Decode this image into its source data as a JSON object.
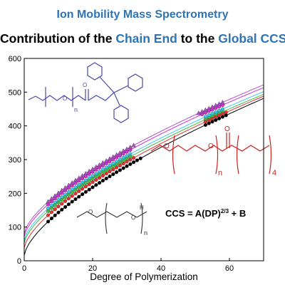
{
  "title": "Ion Mobility Mass Spectrometry",
  "subtitle": {
    "part1": "Contribution of the ",
    "part2": "Chain End",
    "part3": " to the ",
    "part4": "Global CCS"
  },
  "formula": {
    "prefix": "CCS = A(DP)",
    "exponent": "2/3",
    "suffix": " + B"
  },
  "structure_labels": {
    "n": "n",
    "o": "O",
    "h": "H",
    "four": "4"
  },
  "colors": {
    "title": "#2e74b5",
    "purple": "#b24fd1",
    "magenta": "#cc33cc",
    "cyan": "#33ccee",
    "green": "#44bb44",
    "red": "#e03030",
    "black": "#000000",
    "struct_blue": "#4a4aa8",
    "struct_red": "#cc2222",
    "struct_black": "#333333"
  },
  "chart_data": {
    "type": "scatter",
    "xlabel": "Degree of Polymerization",
    "ylabel": "",
    "xlim": [
      0,
      70
    ],
    "ylim": [
      0,
      600
    ],
    "xticks": [
      "0",
      "20",
      "40",
      "60"
    ],
    "yticks": [
      "0",
      "100",
      "200",
      "300",
      "400",
      "500",
      "600"
    ],
    "grid": false,
    "fit": "CCS = A(DP)^(2/3) + B",
    "series": [
      {
        "color": "#b24fd1",
        "marker": "triangle",
        "A": 26.0,
        "B": 80,
        "x_low": [
          7,
          32
        ],
        "x_high": [
          51,
          58
        ]
      },
      {
        "color": "#cc33cc",
        "marker": "circle",
        "A": 26.0,
        "B": 72,
        "x_low": [
          7,
          31
        ],
        "x_high": [
          52,
          58
        ]
      },
      {
        "color": "#33ccee",
        "marker": "circle",
        "A": 26.0,
        "B": 60,
        "x_low": [
          7,
          31
        ],
        "x_high": [
          53,
          58
        ]
      },
      {
        "color": "#44bb44",
        "marker": "circle",
        "A": 26.0,
        "B": 52,
        "x_low": [
          7,
          31
        ],
        "x_high": [
          53,
          58
        ]
      },
      {
        "color": "#e03030",
        "marker": "circle",
        "A": 26.5,
        "B": 38,
        "x_low": [
          7,
          32
        ],
        "x_high": [
          53,
          59
        ]
      },
      {
        "color": "#000000",
        "marker": "circle",
        "A": 27.4,
        "B": 16,
        "x_low": [
          7,
          34
        ],
        "x_high": [
          53,
          59
        ]
      }
    ]
  }
}
